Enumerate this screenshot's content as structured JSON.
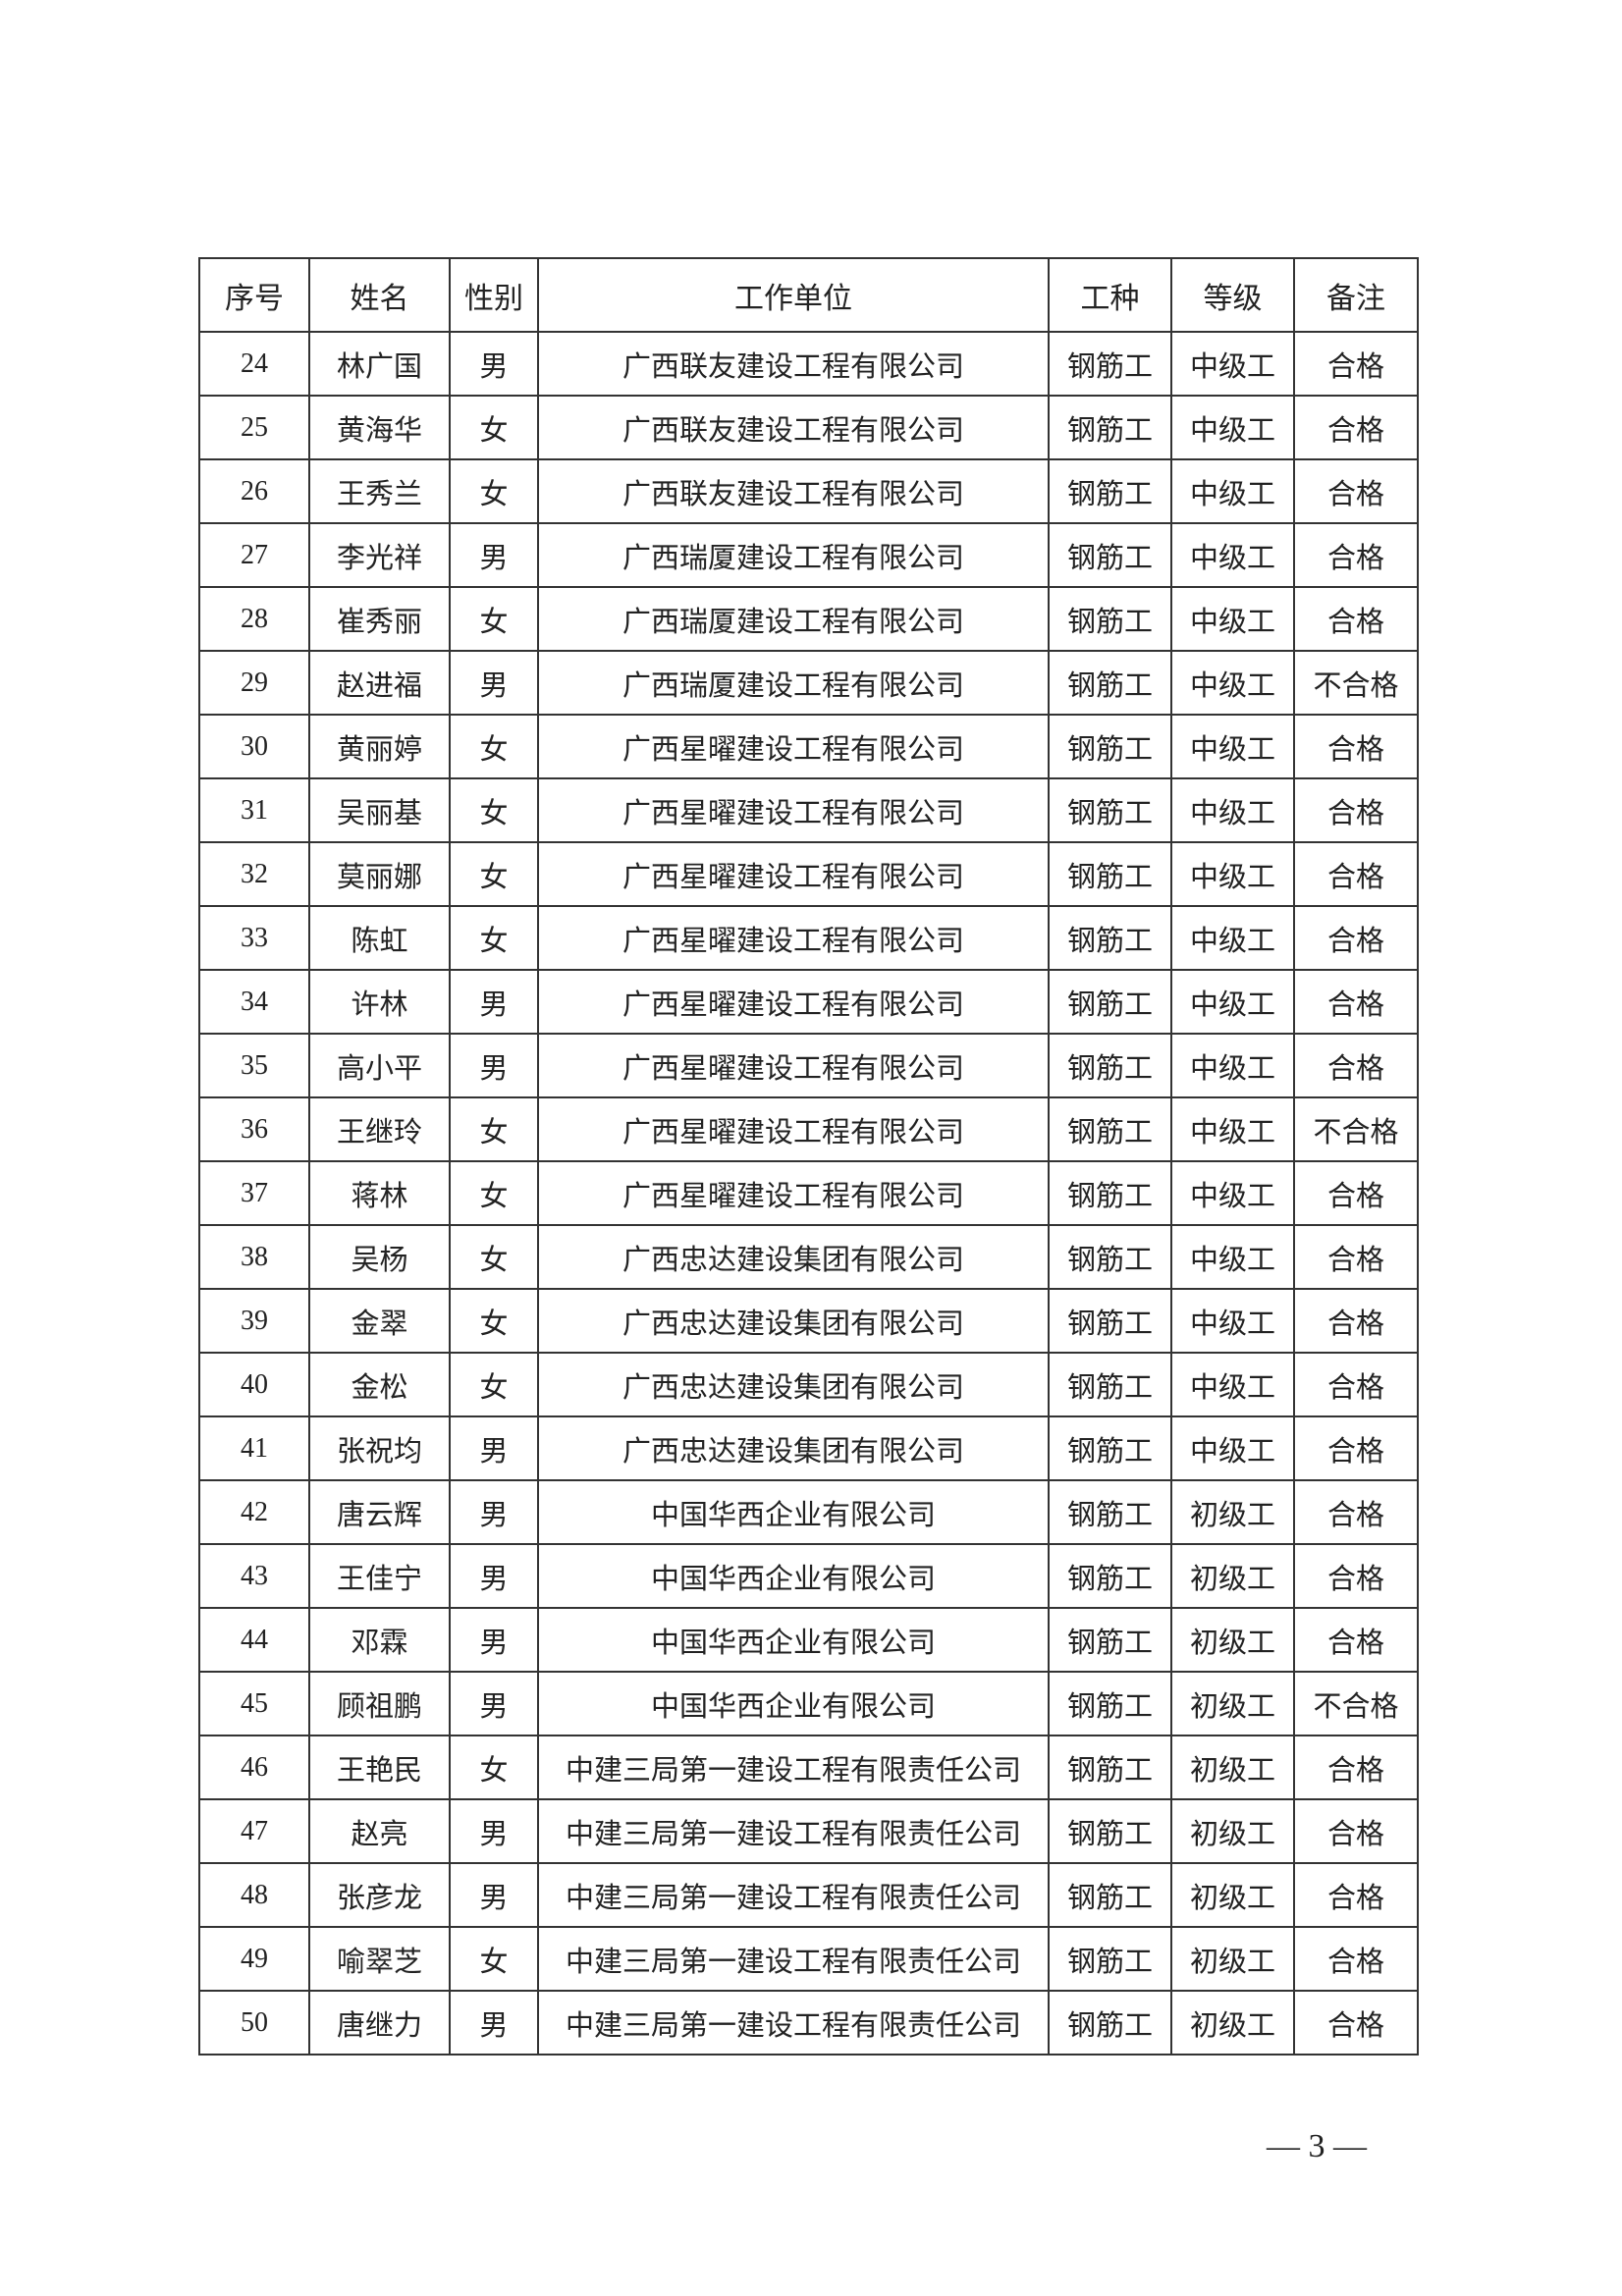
{
  "table": {
    "headers": [
      "序号",
      "姓名",
      "性别",
      "工作单位",
      "工种",
      "等级",
      "备注"
    ],
    "rows": [
      [
        "24",
        "林广国",
        "男",
        "广西联友建设工程有限公司",
        "钢筋工",
        "中级工",
        "合格"
      ],
      [
        "25",
        "黄海华",
        "女",
        "广西联友建设工程有限公司",
        "钢筋工",
        "中级工",
        "合格"
      ],
      [
        "26",
        "王秀兰",
        "女",
        "广西联友建设工程有限公司",
        "钢筋工",
        "中级工",
        "合格"
      ],
      [
        "27",
        "李光祥",
        "男",
        "广西瑞厦建设工程有限公司",
        "钢筋工",
        "中级工",
        "合格"
      ],
      [
        "28",
        "崔秀丽",
        "女",
        "广西瑞厦建设工程有限公司",
        "钢筋工",
        "中级工",
        "合格"
      ],
      [
        "29",
        "赵进福",
        "男",
        "广西瑞厦建设工程有限公司",
        "钢筋工",
        "中级工",
        "不合格"
      ],
      [
        "30",
        "黄丽婷",
        "女",
        "广西星曜建设工程有限公司",
        "钢筋工",
        "中级工",
        "合格"
      ],
      [
        "31",
        "吴丽基",
        "女",
        "广西星曜建设工程有限公司",
        "钢筋工",
        "中级工",
        "合格"
      ],
      [
        "32",
        "莫丽娜",
        "女",
        "广西星曜建设工程有限公司",
        "钢筋工",
        "中级工",
        "合格"
      ],
      [
        "33",
        "陈虹",
        "女",
        "广西星曜建设工程有限公司",
        "钢筋工",
        "中级工",
        "合格"
      ],
      [
        "34",
        "许林",
        "男",
        "广西星曜建设工程有限公司",
        "钢筋工",
        "中级工",
        "合格"
      ],
      [
        "35",
        "高小平",
        "男",
        "广西星曜建设工程有限公司",
        "钢筋工",
        "中级工",
        "合格"
      ],
      [
        "36",
        "王继玲",
        "女",
        "广西星曜建设工程有限公司",
        "钢筋工",
        "中级工",
        "不合格"
      ],
      [
        "37",
        "蒋林",
        "女",
        "广西星曜建设工程有限公司",
        "钢筋工",
        "中级工",
        "合格"
      ],
      [
        "38",
        "吴杨",
        "女",
        "广西忠达建设集团有限公司",
        "钢筋工",
        "中级工",
        "合格"
      ],
      [
        "39",
        "金翠",
        "女",
        "广西忠达建设集团有限公司",
        "钢筋工",
        "中级工",
        "合格"
      ],
      [
        "40",
        "金松",
        "女",
        "广西忠达建设集团有限公司",
        "钢筋工",
        "中级工",
        "合格"
      ],
      [
        "41",
        "张祝均",
        "男",
        "广西忠达建设集团有限公司",
        "钢筋工",
        "中级工",
        "合格"
      ],
      [
        "42",
        "唐云辉",
        "男",
        "中国华西企业有限公司",
        "钢筋工",
        "初级工",
        "合格"
      ],
      [
        "43",
        "王佳宁",
        "男",
        "中国华西企业有限公司",
        "钢筋工",
        "初级工",
        "合格"
      ],
      [
        "44",
        "邓霖",
        "男",
        "中国华西企业有限公司",
        "钢筋工",
        "初级工",
        "合格"
      ],
      [
        "45",
        "顾祖鹏",
        "男",
        "中国华西企业有限公司",
        "钢筋工",
        "初级工",
        "不合格"
      ],
      [
        "46",
        "王艳民",
        "女",
        "中建三局第一建设工程有限责任公司",
        "钢筋工",
        "初级工",
        "合格"
      ],
      [
        "47",
        "赵亮",
        "男",
        "中建三局第一建设工程有限责任公司",
        "钢筋工",
        "初级工",
        "合格"
      ],
      [
        "48",
        "张彦龙",
        "男",
        "中建三局第一建设工程有限责任公司",
        "钢筋工",
        "初级工",
        "合格"
      ],
      [
        "49",
        "喻翠芝",
        "女",
        "中建三局第一建设工程有限责任公司",
        "钢筋工",
        "初级工",
        "合格"
      ],
      [
        "50",
        "唐继力",
        "男",
        "中建三局第一建设工程有限责任公司",
        "钢筋工",
        "初级工",
        "合格"
      ]
    ]
  },
  "page_number": "— 3 —"
}
